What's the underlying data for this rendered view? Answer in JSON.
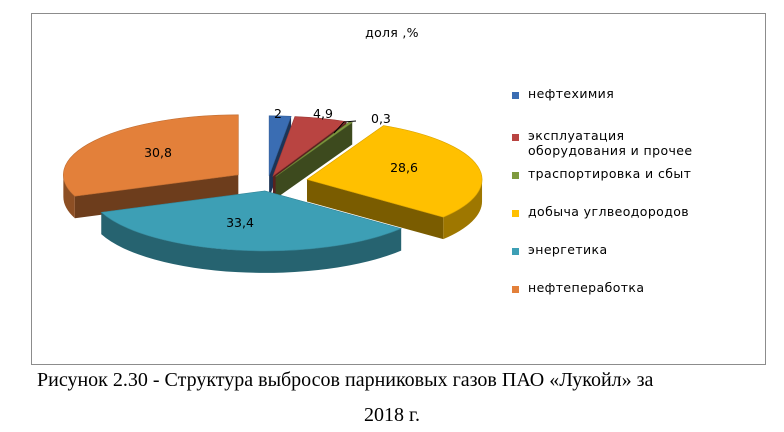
{
  "chart_data": {
    "type": "pie",
    "title": "доля ,%",
    "categories": [
      "нефтехимия",
      "эксплуатация оборудования и прочее",
      "траспортировка и сбыт",
      "добыча углвеодородов",
      "энергетика",
      "нефтепеработка"
    ],
    "values": [
      2,
      4.9,
      0.3,
      28.6,
      33.4,
      30.8
    ],
    "value_labels": [
      "2",
      "4,9",
      "0,3",
      "28,6",
      "33,4",
      "30,8"
    ],
    "colors": [
      "#3a6db3",
      "#b94441",
      "#7f9a3e",
      "#ffc000",
      "#3d9fb5",
      "#e3803a"
    ],
    "legend_lines": [
      [
        "нефтехимия"
      ],
      [
        "эксплуатация",
        "оборудования и прочее"
      ],
      [
        "траспортировка и сбыт"
      ],
      [
        "добыча углвеодородов"
      ],
      [
        "энергетика"
      ],
      [
        "нефтепеработка"
      ]
    ],
    "legend_position": "right",
    "style": "3d-exploded"
  },
  "caption": {
    "line1": "Рисунок 2.30 - Структура выбросов парниковых газов ПАО «Лукойл»  за",
    "line2": "2018 г."
  }
}
